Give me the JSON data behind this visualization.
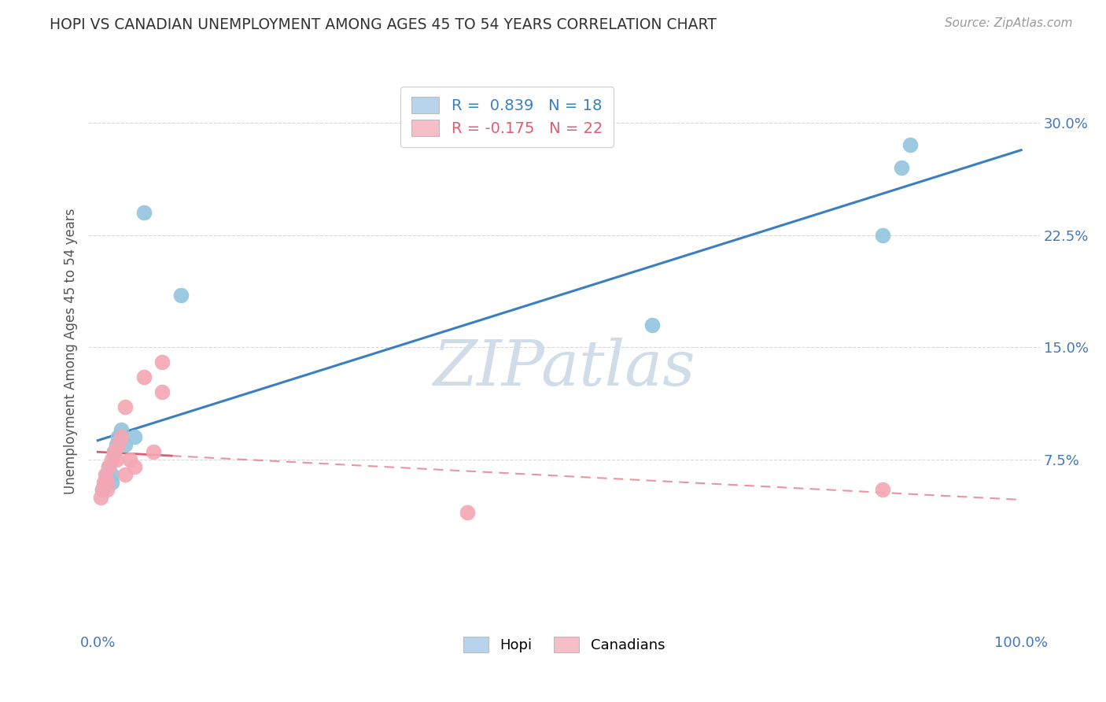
{
  "title": "HOPI VS CANADIAN UNEMPLOYMENT AMONG AGES 45 TO 54 YEARS CORRELATION CHART",
  "source": "Source: ZipAtlas.com",
  "ylabel": "Unemployment Among Ages 45 to 54 years",
  "xlabel": "",
  "xlim": [
    -0.01,
    1.02
  ],
  "ylim": [
    -0.04,
    0.335
  ],
  "yticks": [
    0.075,
    0.15,
    0.225,
    0.3
  ],
  "ytick_labels": [
    "7.5%",
    "15.0%",
    "22.5%",
    "30.0%"
  ],
  "xticks": [
    0.0,
    0.25,
    0.5,
    0.75,
    1.0
  ],
  "xtick_labels": [
    "0.0%",
    "",
    "",
    "",
    "100.0%"
  ],
  "hopi_x": [
    0.005,
    0.008,
    0.01,
    0.012,
    0.015,
    0.015,
    0.018,
    0.02,
    0.022,
    0.025,
    0.03,
    0.04,
    0.05,
    0.09,
    0.6,
    0.85,
    0.87,
    0.88
  ],
  "hopi_y": [
    0.055,
    0.06,
    0.065,
    0.07,
    0.06,
    0.065,
    0.08,
    0.085,
    0.09,
    0.095,
    0.085,
    0.09,
    0.24,
    0.185,
    0.165,
    0.225,
    0.27,
    0.285
  ],
  "canadian_x": [
    0.003,
    0.005,
    0.007,
    0.008,
    0.01,
    0.01,
    0.012,
    0.015,
    0.018,
    0.02,
    0.022,
    0.025,
    0.03,
    0.03,
    0.035,
    0.04,
    0.05,
    0.06,
    0.07,
    0.07,
    0.4,
    0.85
  ],
  "canadian_y": [
    0.05,
    0.055,
    0.06,
    0.065,
    0.055,
    0.06,
    0.07,
    0.075,
    0.08,
    0.075,
    0.085,
    0.09,
    0.11,
    0.065,
    0.075,
    0.07,
    0.13,
    0.08,
    0.12,
    0.14,
    0.04,
    0.055
  ],
  "hopi_R": 0.839,
  "hopi_N": 18,
  "canadian_R": -0.175,
  "canadian_N": 22,
  "hopi_color": "#92c5de",
  "canadian_color": "#f4a7b4",
  "hopi_line_color": "#3a7fc1",
  "canadian_line_color": "#e05c70",
  "background_color": "#ffffff",
  "grid_color": "#d0d0d0",
  "title_color": "#333333",
  "axis_label_color": "#555555",
  "tick_color": "#4477bb",
  "watermark_color": "#d0dde8",
  "legend_box_color_hopi": "#b8d4ec",
  "legend_box_color_canadian": "#f5bfc8"
}
